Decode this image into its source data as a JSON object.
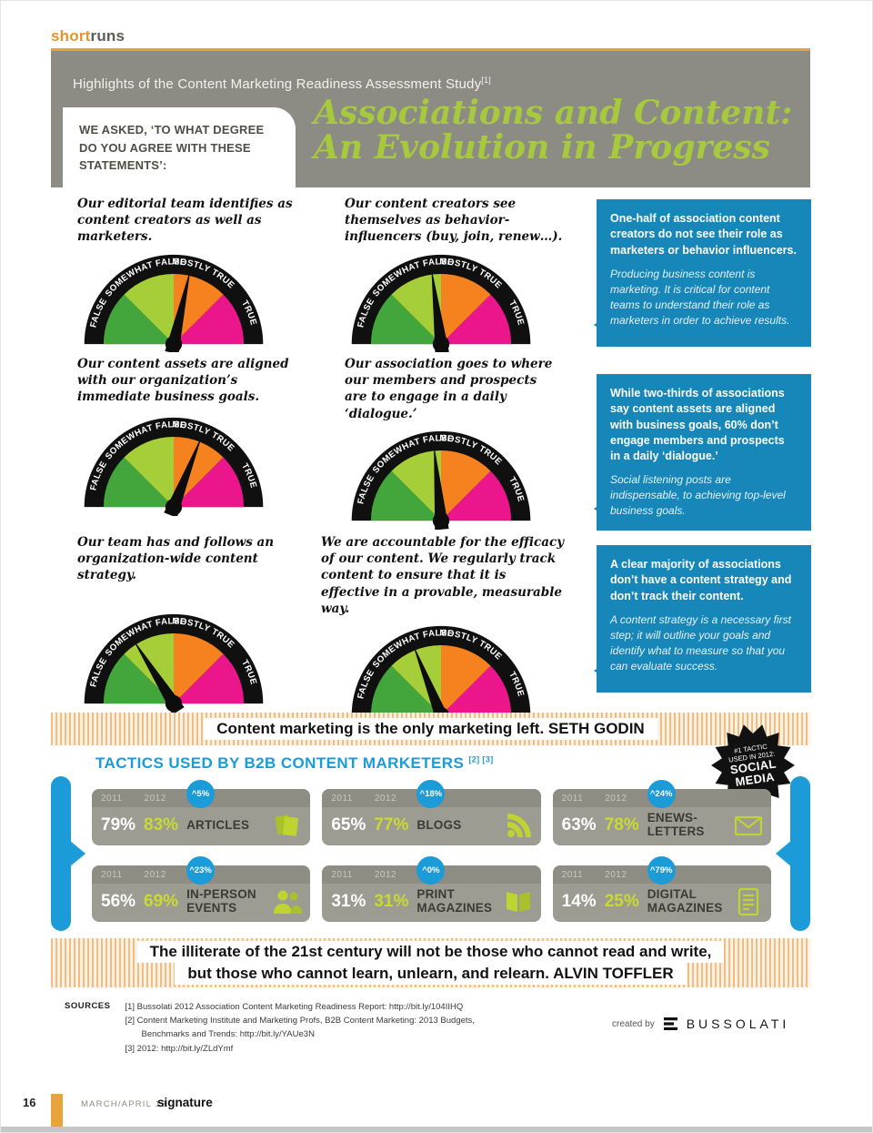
{
  "colors": {
    "orange_accent": "#E8A13C",
    "header_gray": "#8C8C85",
    "title_green": "#A7C93E",
    "callout_blue": "#1786B8",
    "accent_blue": "#1B9BD7",
    "value_green": "#C9DB2F",
    "gauge_colors": [
      "#42A63C",
      "#A6CE39",
      "#F5821F",
      "#EB168C"
    ]
  },
  "masthead": {
    "brand_short": "short",
    "brand_runs": "runs"
  },
  "header": {
    "kicker": "Highlights of the Content Marketing Readiness Assessment Study",
    "kicker_ref": "[1]",
    "question": "WE ASKED, ‘TO WHAT DEGREE DO YOU AGREE WITH THESE STATEMENTS’:",
    "title_line1": "Associations and Content:",
    "title_line2": "An Evolution in Progress"
  },
  "gauge_scale": {
    "labels": [
      "FALSE",
      "SOMEWHAT FALSE",
      "MOSTLY TRUE",
      "TRUE"
    ],
    "colors": [
      "#42A63C",
      "#A6CE39",
      "#F5821F",
      "#EB168C"
    ]
  },
  "gauges": [
    {
      "statement": "Our editorial team identifies as content creators as well as marketers.",
      "value": 57
    },
    {
      "statement": "Our content creators see themselves as behavior-influencers (buy, join, renew…).",
      "value": 46
    },
    {
      "statement": "Our content assets are aligned with our organization’s immediate business goals.",
      "value": 62
    },
    {
      "statement": "Our association goes to where our members and prospects are to engage in a daily ‘dialogue.’",
      "value": 47
    },
    {
      "statement": "Our team has and follows an organization-wide content strategy.",
      "value": 32
    },
    {
      "statement": "We are accountable for the efficacy of our content. We regularly track content to ensure that it is effective in a provable, measurable way.",
      "value": 38
    }
  ],
  "callouts": [
    {
      "headline": "One-half of association content creators do not see their role as marketers or behavior influencers.",
      "body": "Producing business content is marketing. It is critical for content teams to understand their role as marketers in order to achieve results."
    },
    {
      "headline": "While two-thirds of associations say content assets are aligned with business goals, 60% don’t engage members and prospects in a daily ‘dialogue.’",
      "body": "Social listening posts are indispensable, to achieving top-level business goals."
    },
    {
      "headline": "A clear majority of associations don’t have a content strategy and don’t track their content.",
      "body": "A content strategy is a necessary first step; it will outline your goals and identify what to measure so that you can evaluate success."
    }
  ],
  "quote1": {
    "text": "Content marketing is the only marketing left.",
    "attribution": "SETH GODIN"
  },
  "tactics": {
    "title": "TACTICS USED BY B2B CONTENT MARKETERS",
    "refs": "[2] [3]",
    "badge": {
      "l1": "#1 TACTIC",
      "l2": "USED IN 2012:",
      "l3": "SOCIAL",
      "l4": "MEDIA"
    },
    "year1": "2011",
    "year2": "2012",
    "items": [
      {
        "v2011": "79%",
        "v2012": "83%",
        "change": "^5%",
        "label": "ARTICLES",
        "icon": "pages-icon"
      },
      {
        "v2011": "65%",
        "v2012": "77%",
        "change": "^18%",
        "label": "BLOGS",
        "icon": "rss-icon"
      },
      {
        "v2011": "63%",
        "v2012": "78%",
        "change": "^24%",
        "label": "ENEWS- LETTERS",
        "icon": "envelope-icon"
      },
      {
        "v2011": "56%",
        "v2012": "69%",
        "change": "^23%",
        "label": "IN-PERSON EVENTS",
        "icon": "people-icon"
      },
      {
        "v2011": "31%",
        "v2012": "31%",
        "change": "^0%",
        "label": "PRINT MAGAZINES",
        "icon": "open-book-icon"
      },
      {
        "v2011": "14%",
        "v2012": "25%",
        "change": "^79%",
        "label": "DIGITAL MAGAZINES",
        "icon": "document-icon"
      }
    ]
  },
  "quote2": {
    "line1": "The illiterate of the 21st century will not be those who cannot read and write,",
    "line2": "but those who cannot learn, unlearn, and relearn.",
    "attribution": "ALVIN TOFFLER"
  },
  "sources": {
    "label": "SOURCES",
    "lines": [
      "[1] Bussolati 2012 Association Content Marketing Readiness Report: http://bit.ly/104IIHQ",
      "[2] Content Marketing Institute and Marketing Profs, B2B Content Marketing: 2013 Budgets,",
      "Benchmarks and Trends: http://bit.ly/YAUe3N",
      "[3] 2012: http://bit.ly/ZLdYmf"
    ]
  },
  "credit": {
    "label": "created by",
    "brand": "BUSSOLATI"
  },
  "footer": {
    "page_number": "16",
    "issue": "MARCH/APRIL 13",
    "magazine": "signature"
  },
  "chart_data": [
    {
      "type": "gauge",
      "title": "To what degree do you agree with these statements",
      "scale_labels": [
        "FALSE",
        "SOMEWHAT FALSE",
        "MOSTLY TRUE",
        "TRUE"
      ],
      "scale_range_pct": [
        0,
        100
      ],
      "gauges": [
        {
          "statement": "Our editorial team identifies as content creators as well as marketers.",
          "needle_pct": 57,
          "reading": "just into MOSTLY TRUE"
        },
        {
          "statement": "Our content creators see themselves as behavior-influencers (buy, join, renew…).",
          "needle_pct": 46,
          "reading": "high end of SOMEWHAT FALSE"
        },
        {
          "statement": "Our content assets are aligned with our organization’s immediate business goals.",
          "needle_pct": 62,
          "reading": "MOSTLY TRUE"
        },
        {
          "statement": "Our association goes to where our members and prospects are to engage in a daily ‘dialogue.’",
          "needle_pct": 47,
          "reading": "high end of SOMEWHAT FALSE"
        },
        {
          "statement": "Our team has and follows an organization-wide content strategy.",
          "needle_pct": 32,
          "reading": "SOMEWHAT FALSE"
        },
        {
          "statement": "We are accountable for the efficacy of our content. We regularly track content to ensure that it is effective in a provable, measurable way.",
          "needle_pct": 38,
          "reading": "SOMEWHAT FALSE"
        }
      ]
    },
    {
      "type": "bar",
      "title": "TACTICS USED BY B2B CONTENT MARKETERS",
      "categories": [
        "ARTICLES",
        "BLOGS",
        "ENEWSLETTERS",
        "IN-PERSON EVENTS",
        "PRINT MAGAZINES",
        "DIGITAL MAGAZINES"
      ],
      "series": [
        {
          "name": "2011",
          "values": [
            79,
            65,
            63,
            56,
            31,
            14
          ]
        },
        {
          "name": "2012",
          "values": [
            83,
            77,
            78,
            69,
            31,
            25
          ]
        }
      ],
      "change_pct": [
        5,
        18,
        24,
        23,
        0,
        79
      ],
      "unit": "%",
      "top_tactic_2012": "SOCIAL MEDIA"
    }
  ]
}
